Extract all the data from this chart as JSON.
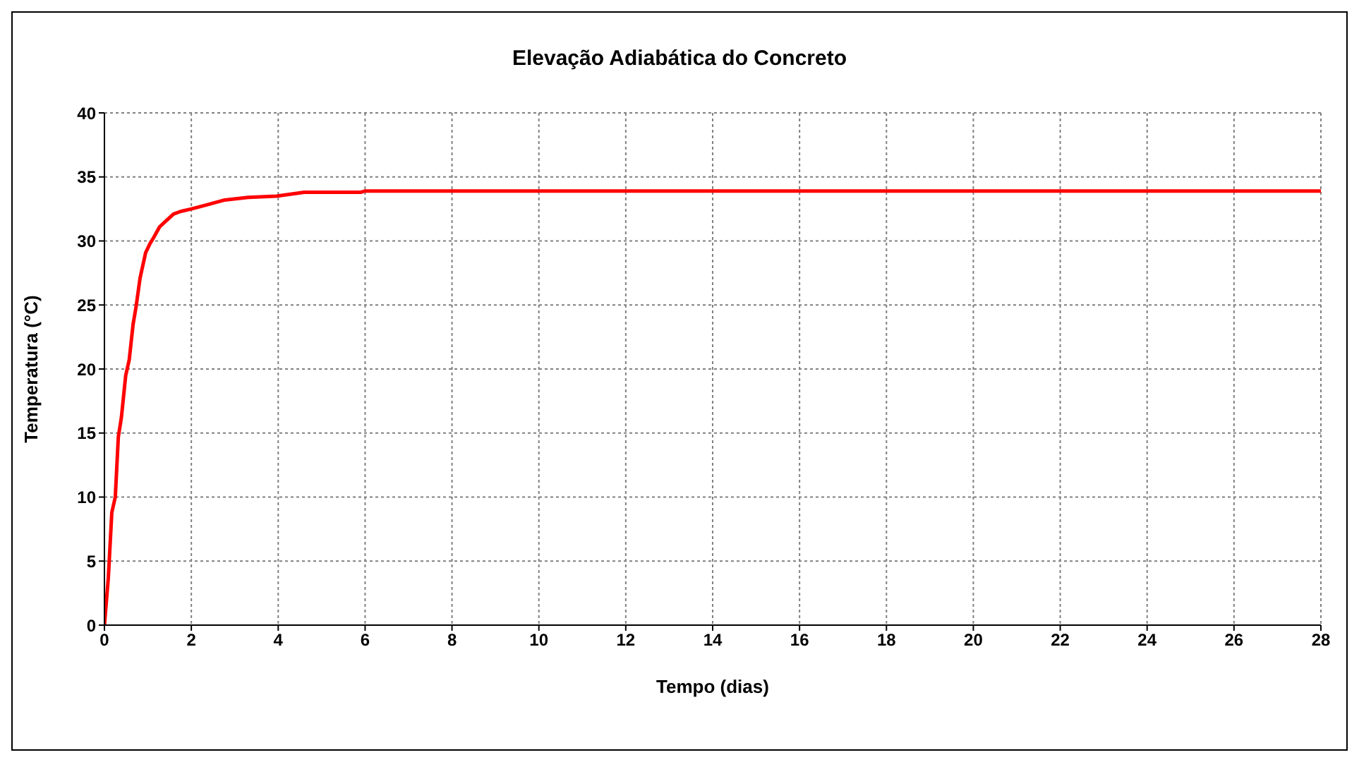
{
  "chart_data": {
    "type": "line",
    "title": "Elevação Adiabática do Concreto",
    "xlabel": "Tempo (dias)",
    "ylabel": "Temperatura (°C)",
    "series": [
      {
        "color": "#ff0000",
        "x": [
          0,
          0.09,
          0.17,
          0.25,
          0.32,
          0.39,
          0.49,
          0.57,
          0.66,
          0.73,
          0.82,
          0.95,
          1.05,
          1.14,
          1.27,
          1.43,
          1.59,
          1.75,
          2,
          2.34,
          2.77,
          3.31,
          3.96,
          4.6,
          5.9,
          6,
          28
        ],
        "values": [
          0,
          3.7,
          8.8,
          10,
          14.7,
          16.2,
          19.5,
          20.7,
          23.5,
          24.9,
          27.1,
          29.1,
          29.8,
          30.3,
          31.1,
          31.6,
          32.1,
          32.3,
          32.5,
          32.8,
          33.2,
          33.4,
          33.5,
          33.8,
          33.8,
          33.9,
          33.9
        ]
      }
    ],
    "xlim": [
      0,
      28
    ],
    "xticks": [
      0,
      2,
      4,
      6,
      8,
      10,
      12,
      14,
      16,
      18,
      20,
      22,
      24,
      26,
      28
    ],
    "ylim": [
      0,
      40
    ],
    "yticks": [
      0,
      5,
      10,
      15,
      20,
      25,
      30,
      35,
      40
    ],
    "grid": true,
    "legend": false,
    "marker": "none",
    "line_style": "solid"
  }
}
